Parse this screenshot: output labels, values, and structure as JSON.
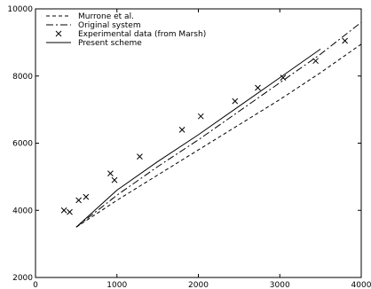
{
  "chart_data": {
    "type": "line",
    "title": "",
    "xlabel": "",
    "ylabel": "",
    "xlim": [
      0,
      4000
    ],
    "ylim": [
      2000,
      10000
    ],
    "x_ticks": [
      0,
      1000,
      2000,
      3000,
      4000
    ],
    "y_ticks": [
      2000,
      4000,
      6000,
      8000,
      10000
    ],
    "grid": false,
    "legend_position": "top-left",
    "series": [
      {
        "name": "Murrone et al.",
        "style": "dashed",
        "x": [
          500,
          1000,
          1500,
          2000,
          2500,
          3000,
          3500,
          4000
        ],
        "y": [
          3500,
          4300,
          5050,
          5800,
          6550,
          7300,
          8100,
          8950
        ]
      },
      {
        "name": "Original system",
        "style": "dash-dot",
        "x": [
          500,
          1000,
          1500,
          2000,
          2500,
          3000,
          3500,
          4000
        ],
        "y": [
          3500,
          4450,
          5300,
          6100,
          6950,
          7800,
          8650,
          9600
        ]
      },
      {
        "name": "Experimental data (from Marsh)",
        "style": "markers",
        "marker": "x",
        "x": [
          350,
          420,
          530,
          620,
          920,
          970,
          1280,
          1800,
          2030,
          2450,
          2730,
          3040,
          3440,
          3800
        ],
        "y": [
          4000,
          3950,
          4300,
          4400,
          5100,
          4900,
          5600,
          6400,
          6800,
          7250,
          7650,
          7950,
          8450,
          9050
        ]
      },
      {
        "name": "Present scheme",
        "style": "solid",
        "x": [
          500,
          1000,
          1500,
          2000,
          2500,
          3000,
          3500
        ],
        "y": [
          3500,
          4600,
          5450,
          6250,
          7100,
          7950,
          8800
        ]
      }
    ]
  }
}
